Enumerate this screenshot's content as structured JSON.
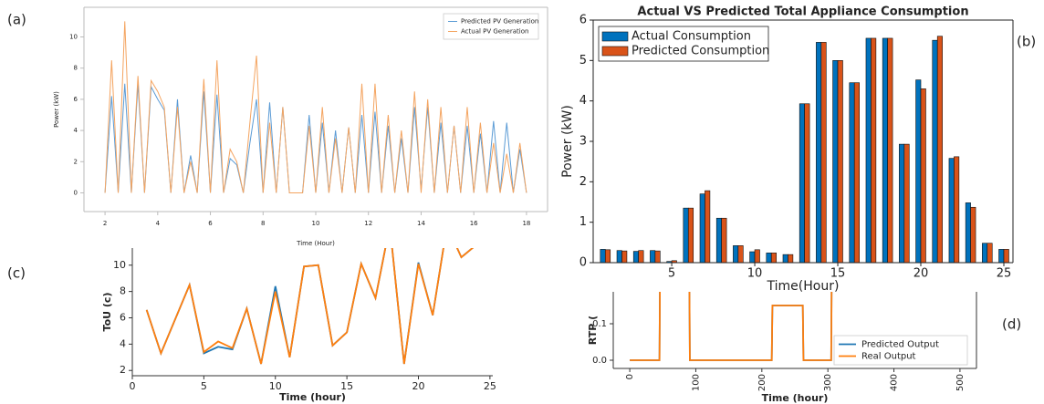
{
  "chart_data": [
    {
      "type": "line",
      "panel_label": "(a)",
      "x_label": "Time (Hour)",
      "y_label": "Power (kW)",
      "x": [
        2,
        2.25,
        2.5,
        2.75,
        3,
        3.25,
        3.5,
        3.75,
        4,
        4.25,
        4.5,
        4.75,
        5,
        5.25,
        5.5,
        5.75,
        6,
        6.25,
        6.5,
        6.75,
        7,
        7.25,
        7.5,
        7.75,
        8,
        8.25,
        8.5,
        8.75,
        9,
        9.25,
        9.5,
        9.75,
        10,
        10.25,
        10.5,
        10.75,
        11,
        11.25,
        11.5,
        11.75,
        12,
        12.25,
        12.5,
        12.75,
        13,
        13.25,
        13.5,
        13.75,
        14,
        14.25,
        14.5,
        14.75,
        15,
        15.25,
        15.5,
        15.75,
        16,
        16.25,
        16.5,
        16.75,
        17,
        17.25,
        17.5,
        17.75,
        18
      ],
      "series": [
        {
          "name": "Predicted PV Generation",
          "color": "#5b9bd5",
          "values": [
            0,
            6.2,
            0,
            7,
            0,
            7,
            0,
            6.8,
            6,
            5.3,
            0,
            6,
            0,
            2.4,
            0,
            6.5,
            0,
            6.3,
            0,
            2.2,
            1.8,
            0,
            3.2,
            6,
            0,
            5.8,
            0,
            5.5,
            0,
            0,
            0,
            5,
            0,
            4.5,
            0,
            4,
            0,
            4.2,
            0,
            5,
            0,
            5.2,
            0,
            4.3,
            0,
            3.5,
            0,
            5.5,
            0.2,
            5.5,
            0,
            4.5,
            0,
            4.3,
            0,
            4.3,
            0,
            3.8,
            0,
            4.6,
            0,
            4.5,
            0,
            2.8,
            0
          ]
        },
        {
          "name": "Actual PV Generation",
          "color": "#f4a460",
          "values": [
            0,
            8.5,
            0,
            11,
            0,
            7.5,
            0,
            7.2,
            6.5,
            5.5,
            0,
            5.5,
            0,
            2,
            0,
            7.3,
            0,
            8.5,
            0,
            2.8,
            2,
            0,
            4.5,
            8.8,
            0,
            4.5,
            0,
            5.5,
            0,
            0,
            0,
            4.3,
            0,
            5.5,
            0,
            3.5,
            0,
            4.2,
            0,
            7,
            0,
            7,
            0,
            5,
            0,
            4,
            0,
            6.5,
            0,
            6,
            0,
            5.5,
            0,
            4.3,
            0,
            5.5,
            0,
            4.5,
            0,
            3.2,
            0,
            2.5,
            0,
            3.2,
            0
          ]
        }
      ],
      "xlim": [
        1.2,
        18.8
      ],
      "ylim": [
        -1.2,
        11.9
      ],
      "xticks": [
        2,
        4,
        6,
        8,
        10,
        12,
        14,
        16,
        18
      ],
      "yticks": [
        0,
        2,
        4,
        6,
        8,
        10
      ],
      "legend": "upper right"
    },
    {
      "type": "bar",
      "title": "Actual VS Predicted Total Appliance Consumption",
      "panel_label": "(b)",
      "x_label": "Time(Hour)",
      "y_label": "Power (kW)",
      "x": [
        1,
        2,
        3,
        4,
        5,
        6,
        7,
        8,
        9,
        10,
        11,
        12,
        13,
        14,
        15,
        16,
        17,
        18,
        19,
        20,
        21,
        22,
        23,
        24,
        25
      ],
      "series": [
        {
          "name": "Actual Consumption",
          "color": "#0072bd",
          "values": [
            0.33,
            0.3,
            0.28,
            0.3,
            0.03,
            1.35,
            1.7,
            1.1,
            0.42,
            0.27,
            0.24,
            0.2,
            3.93,
            5.45,
            5,
            4.45,
            5.55,
            5.55,
            2.93,
            4.52,
            5.5,
            2.58,
            1.48,
            0.48,
            0.33
          ]
        },
        {
          "name": "Predicted Consumption",
          "color": "#d95319",
          "values": [
            0.32,
            0.29,
            0.3,
            0.29,
            0.05,
            1.35,
            1.78,
            1.1,
            0.42,
            0.32,
            0.24,
            0.2,
            3.93,
            5.45,
            5,
            4.45,
            5.55,
            5.55,
            2.93,
            4.3,
            5.6,
            2.62,
            1.37,
            0.48,
            0.33
          ]
        }
      ],
      "xlim": [
        0.27,
        25.55
      ],
      "ylim": [
        0,
        6
      ],
      "xticks": [
        5,
        10,
        15,
        20,
        25
      ],
      "yticks": [
        0,
        1,
        2,
        3,
        4,
        5,
        6
      ],
      "legend": "upper left"
    },
    {
      "type": "line",
      "panel_label": "(c)",
      "x_label": "Time (hour)",
      "y_label": "ToU (c)",
      "x": [
        1,
        2,
        3,
        4,
        5,
        6,
        7,
        8,
        9,
        10,
        11,
        12,
        13,
        14,
        15,
        16,
        17,
        18,
        19,
        20,
        21,
        22,
        23,
        24
      ],
      "series": [
        {
          "color": "#1f77b4",
          "values": [
            6.6,
            3.3,
            5.9,
            8.5,
            3.3,
            3.8,
            3.6,
            6.7,
            2.5,
            8.4,
            3.0,
            9.9,
            10.0,
            3.9,
            4.9,
            10.1,
            7.5,
            13,
            2.5,
            10.2,
            6.2,
            13,
            10.6,
            11.5
          ]
        },
        {
          "color": "#ff7f0e",
          "values": [
            6.6,
            3.3,
            5.9,
            8.5,
            3.4,
            4.2,
            3.7,
            6.7,
            2.5,
            8.0,
            3.0,
            9.9,
            10.0,
            3.9,
            4.9,
            10.1,
            7.5,
            13,
            2.5,
            10.1,
            6.2,
            13,
            10.6,
            11.5
          ]
        }
      ],
      "xlim": [
        0,
        25.2
      ],
      "ylim": [
        1.6,
        11.3
      ],
      "xticks": [
        0,
        5,
        10,
        15,
        20,
        25
      ],
      "yticks": [
        2,
        4,
        6,
        8,
        10
      ]
    },
    {
      "type": "line",
      "panel_label": "(d)",
      "x_label": "Time (hour)",
      "y_label": "RTP (",
      "x": [
        0,
        45,
        46,
        90,
        91,
        215,
        216,
        262,
        263,
        305,
        306
      ],
      "series": [
        {
          "name": "Predicted Output",
          "color": "#1f77b4",
          "values": [
            0,
            0,
            0.3,
            0.3,
            0,
            0,
            0.15,
            0.15,
            0,
            0,
            0.3
          ]
        },
        {
          "name": "Real Output",
          "color": "#ff7f0e",
          "values": [
            0,
            0,
            0.3,
            0.3,
            0,
            0,
            0.15,
            0.15,
            0,
            0,
            0.3
          ]
        }
      ],
      "xlim": [
        -25,
        525
      ],
      "ylim": [
        -0.0225,
        0.1875
      ],
      "xticks": [
        0,
        100,
        200,
        300,
        400,
        500
      ],
      "yticks": [
        {
          "value": 0,
          "label": "0.0"
        },
        {
          "value": 0.1,
          "label": "0.1"
        }
      ],
      "legend": "lower right"
    }
  ]
}
